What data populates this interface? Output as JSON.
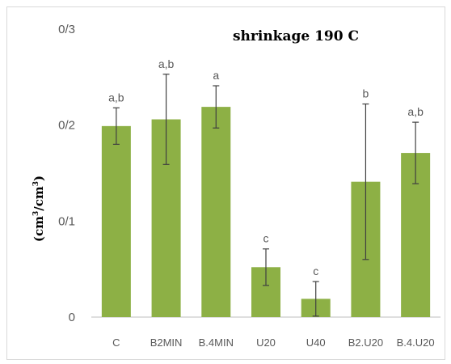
{
  "chart_data": {
    "type": "bar",
    "title": "shrinkage 190 C",
    "xlabel": "",
    "ylabel": "(cm³/cm³)",
    "ylabel_parts": {
      "open": "(cm",
      "sup1": "3",
      "mid": "/cm",
      "sup2": "3",
      "close": ")"
    },
    "ylim": [
      0,
      0.3
    ],
    "yticks": [
      {
        "value": 0,
        "label": "0"
      },
      {
        "value": 0.1,
        "label": "0/1"
      },
      {
        "value": 0.2,
        "label": "0/2"
      },
      {
        "value": 0.3,
        "label": "0/3"
      }
    ],
    "categories": [
      "C",
      "B2MIN",
      "B.4MIN",
      "U20",
      "U40",
      "B2.U20",
      "B.4.U20"
    ],
    "values": [
      0.199,
      0.206,
      0.219,
      0.052,
      0.019,
      0.141,
      0.171
    ],
    "errors": [
      0.019,
      0.047,
      0.022,
      0.019,
      0.018,
      0.081,
      0.032
    ],
    "labels": [
      "a,b",
      "a,b",
      "a",
      "c",
      "c",
      "b",
      "a,b"
    ],
    "bar_color": "#8db045",
    "error_color": "#404040",
    "axis_color": "#bfbfbf",
    "grid": false,
    "legend": "none"
  }
}
